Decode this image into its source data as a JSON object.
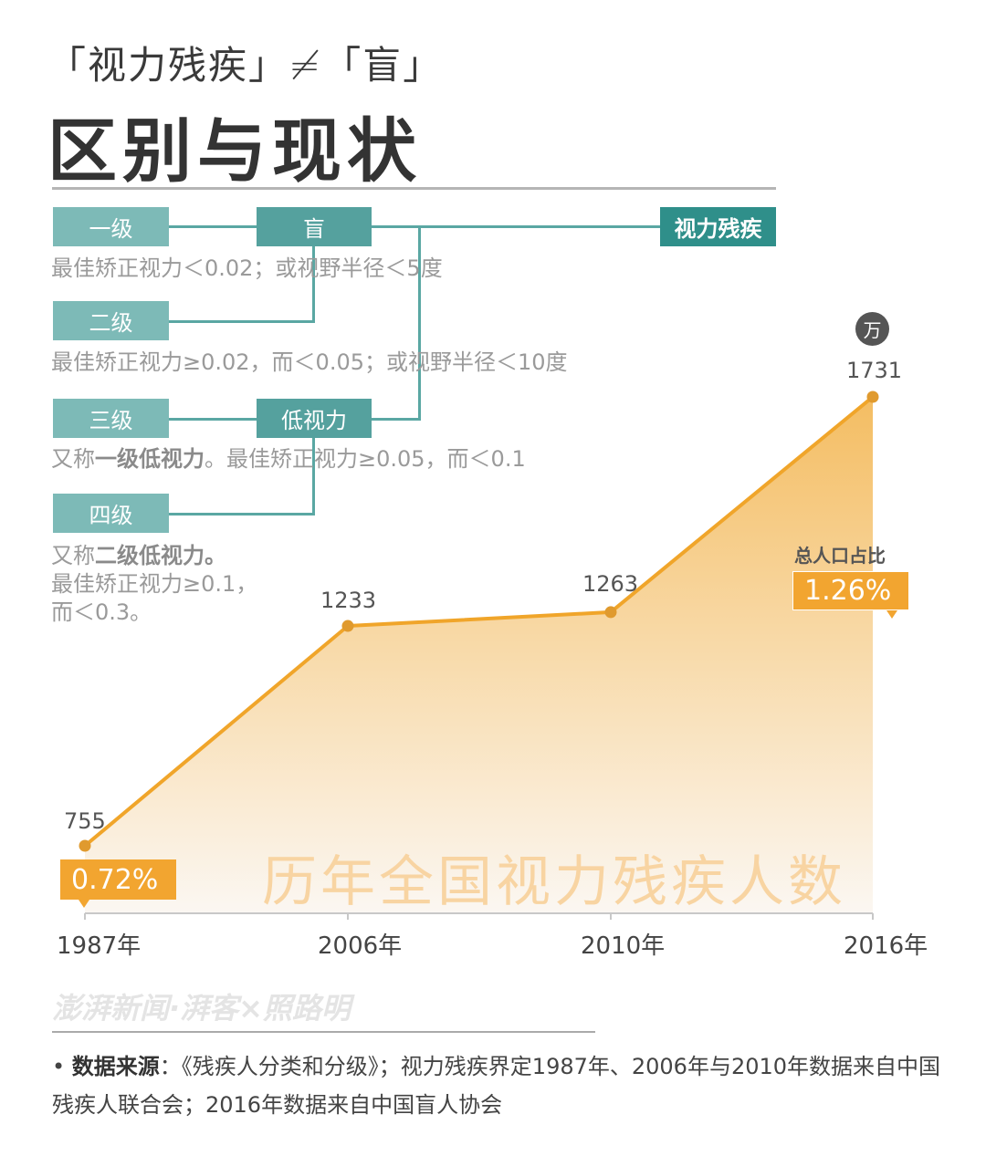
{
  "header": {
    "subtitle": "「视力残疾」≠「盲」",
    "title": "区别与现状"
  },
  "diagram": {
    "root": "视力残疾",
    "categories": [
      "盲",
      "低视力"
    ],
    "levels": [
      {
        "label": "一级",
        "desc": "最佳矫正视力＜0.02；或视野半径＜5度"
      },
      {
        "label": "二级",
        "desc": "最佳矫正视力≥0.02，而＜0.05；或视野半径＜10度"
      },
      {
        "label": "三级",
        "desc_prefix": "又称",
        "desc_bold": "一级低视力",
        "desc_suffix": "。最佳矫正视力≥0.05，而＜0.1"
      },
      {
        "label": "四级",
        "desc_prefix": "又称",
        "desc_bold": "二级低视力。",
        "desc_line2": "最佳矫正视力≥0.1，",
        "desc_line3": "而＜0.3。"
      }
    ],
    "colors": {
      "level": "#7dbab7",
      "category": "#55a19e",
      "root": "#2f8f8a",
      "line": "#5aa7a3"
    }
  },
  "chart_data": {
    "type": "area",
    "title": "历年全国视力残疾人数",
    "unit": "万",
    "categories": [
      "1987年",
      "2006年",
      "2010年",
      "2016年"
    ],
    "values": [
      755,
      1233,
      1263,
      1731
    ],
    "value_labels": [
      "755",
      "1233",
      "1263",
      "1731"
    ],
    "annotations": [
      {
        "x": "1987年",
        "label": "0.72%"
      },
      {
        "x": "2016年",
        "caption": "总人口占比",
        "label": "1.26%"
      }
    ],
    "xlabel": "",
    "ylabel": "",
    "grid": false,
    "colors": {
      "line": "#f0a52a",
      "point": "#e09a2e",
      "fill_top": "#f5c26e",
      "fill_bottom": "#fdf6ee"
    }
  },
  "footer": {
    "brand": "澎湃新闻·湃客×照路明",
    "source_label": "数据来源",
    "source_text": "：《残疾人分类和分级》；视力残疾界定1987年、2006年与2010年数据来自中国残疾人联合会；2016年数据来自中国盲人协会"
  }
}
